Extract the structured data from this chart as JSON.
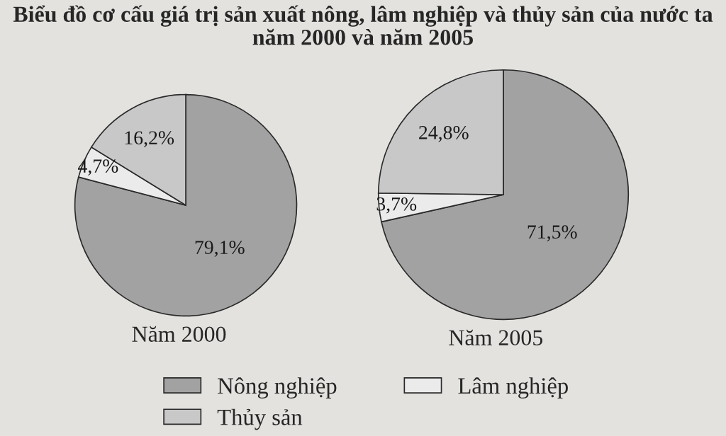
{
  "chart_data": [
    {
      "type": "pie",
      "title": "Biểu đồ cơ cấu giá trị sản xuất nông, lâm nghiệp và thủy sản của nước ta năm 2000 và năm 2005",
      "xlabel": "Năm 2000",
      "categories": [
        "Nông nghiệp",
        "Lâm nghiệp",
        "Thủy sản"
      ],
      "values": [
        79.1,
        4.7,
        16.2
      ],
      "value_labels": [
        "79,1%",
        "4,7%",
        "16,2%"
      ],
      "colors": [
        "#a2a2a2",
        "#ebebeb",
        "#c8c8c8"
      ],
      "legend": "bottom"
    },
    {
      "type": "pie",
      "xlabel": "Năm 2005",
      "categories": [
        null,
        null,
        null
      ],
      "values": [
        71.5,
        3.7,
        24.8
      ],
      "value_labels": [
        "71,5%",
        "3,7%",
        "24,8%"
      ],
      "colors": [
        "#a2a2a2",
        "#ebebeb",
        "#c8c8c8"
      ]
    }
  ]
}
